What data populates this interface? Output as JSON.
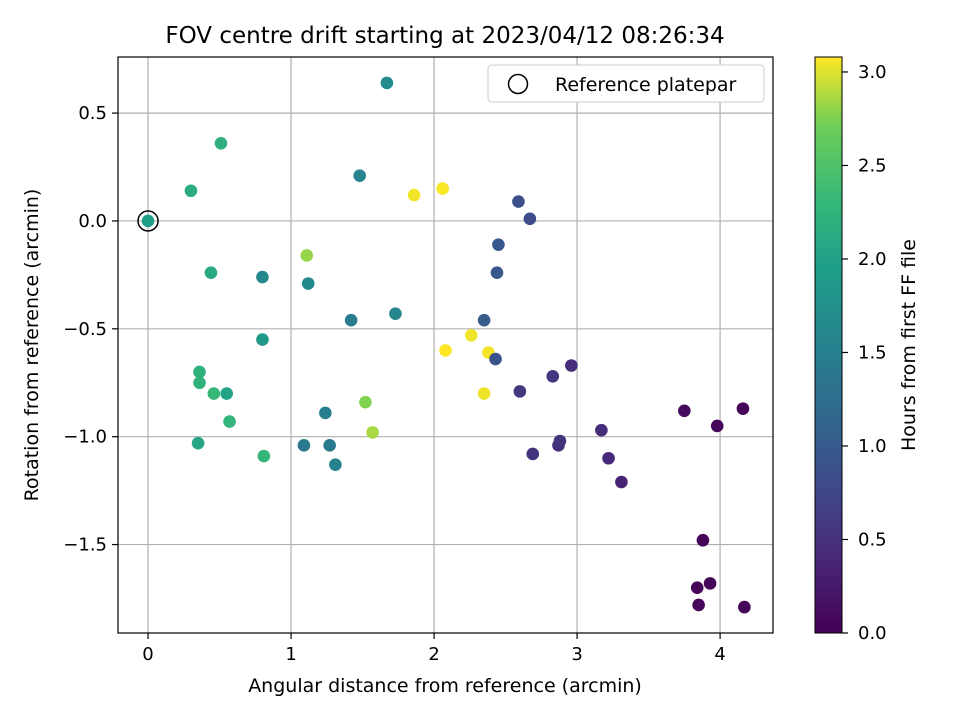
{
  "chart_data": {
    "type": "scatter",
    "title": "FOV centre drift starting at 2023/04/12 08:26:34",
    "xlabel": "Angular distance from reference (arcmin)",
    "ylabel": "Rotation from reference (arcmin)",
    "xlim": [
      -0.21,
      4.37
    ],
    "ylim": [
      -1.91,
      0.76
    ],
    "xticks": [
      0,
      1,
      2,
      3,
      4
    ],
    "xtick_labels": [
      "0",
      "1",
      "2",
      "3",
      "4"
    ],
    "yticks": [
      0.5,
      0.0,
      -0.5,
      -1.0,
      -1.5
    ],
    "ytick_labels": [
      "0.5",
      "0.0",
      "−0.5",
      "−1.0",
      "−1.5"
    ],
    "grid": true,
    "legend": {
      "position": "top-right",
      "label": "Reference platepar"
    },
    "reference_point": {
      "x": 0,
      "y": 0
    },
    "colorbar": {
      "label": "Hours from first FF file",
      "range": [
        0.0,
        3.08
      ],
      "ticks": [
        0.0,
        0.5,
        1.0,
        1.5,
        2.0,
        2.5,
        3.0
      ],
      "tick_labels": [
        "0.0",
        "0.5",
        "1.0",
        "1.5",
        "2.0",
        "2.5",
        "3.0"
      ],
      "colormap": "viridis"
    },
    "series": [
      {
        "x": [
          0.0,
          0.3,
          0.51,
          0.44,
          0.36,
          0.36,
          0.35,
          0.46,
          0.55,
          0.57,
          0.8,
          0.8,
          0.81,
          1.11,
          1.12,
          1.09,
          1.24,
          1.27,
          1.31,
          1.42,
          1.48,
          1.52,
          1.57,
          1.67,
          1.73,
          1.86,
          2.06,
          2.08,
          2.26,
          2.35,
          2.35,
          2.38,
          2.43,
          2.44,
          2.45,
          2.59,
          2.6,
          2.67,
          2.69,
          2.83,
          2.87,
          2.88,
          2.96,
          3.17,
          3.22,
          3.31,
          3.75,
          3.84,
          3.85,
          3.88,
          3.93,
          3.98,
          4.16,
          4.17
        ],
        "y": [
          0.0,
          0.14,
          0.36,
          -0.24,
          -0.7,
          -0.75,
          -1.03,
          -0.8,
          -0.8,
          -0.93,
          -0.26,
          -0.55,
          -1.09,
          -0.16,
          -0.29,
          -1.04,
          -0.89,
          -1.04,
          -1.13,
          -0.46,
          0.21,
          -0.84,
          -0.98,
          0.64,
          -0.43,
          0.12,
          0.15,
          -0.6,
          -0.53,
          -0.8,
          -0.46,
          -0.61,
          -0.64,
          -0.24,
          -0.11,
          0.09,
          -0.79,
          0.01,
          -1.08,
          -0.72,
          -1.04,
          -1.02,
          -0.67,
          -0.97,
          -1.1,
          -1.21,
          -0.88,
          -1.7,
          -1.78,
          -1.48,
          -1.68,
          -0.95,
          -0.87,
          -1.79
        ],
        "hours": [
          1.94,
          2.15,
          2.2,
          2.09,
          2.24,
          2.24,
          2.05,
          2.32,
          2.0,
          2.27,
          1.62,
          1.83,
          2.3,
          2.8,
          1.64,
          1.4,
          1.5,
          1.42,
          1.56,
          1.45,
          1.57,
          2.75,
          2.85,
          1.67,
          1.6,
          3.05,
          3.07,
          3.08,
          3.04,
          3.04,
          1.0,
          3.05,
          0.88,
          0.95,
          0.95,
          0.85,
          0.6,
          0.82,
          0.52,
          0.55,
          0.45,
          0.52,
          0.45,
          0.45,
          0.4,
          0.35,
          0.1,
          0.05,
          0.05,
          0.05,
          0.05,
          0.05,
          0.05,
          0.05
        ]
      }
    ]
  }
}
